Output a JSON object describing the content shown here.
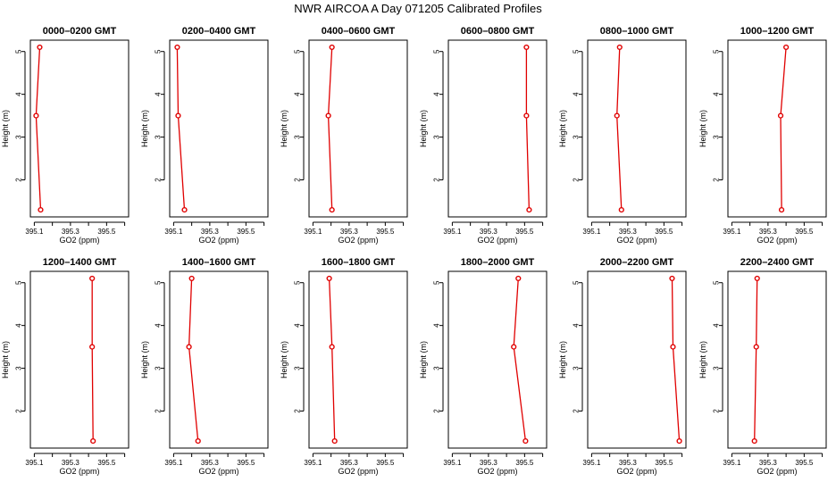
{
  "title": "NWR AIRCOA A  Day 071205  Calibrated Profiles",
  "colors": {
    "series": "#e00000",
    "frame": "#000000",
    "background": "#ffffff"
  },
  "chart_data": [
    {
      "type": "line",
      "title": "0000–0200 GMT",
      "xlabel": "GO2 (ppm)",
      "ylabel": "Height (m)",
      "xlim": [
        395.1,
        395.6
      ],
      "ylim": [
        1.3,
        5.1
      ],
      "x_ticks": [
        "395.1",
        "395.3",
        "395.5"
      ],
      "y_ticks": [
        "2",
        "3",
        "4",
        "5"
      ],
      "grid": false,
      "x": [
        395.13,
        395.11,
        395.135
      ],
      "y": [
        5.1,
        3.5,
        1.3
      ]
    },
    {
      "type": "line",
      "title": "0200–0400 GMT",
      "xlabel": "GO2 (ppm)",
      "ylabel": "Height (m)",
      "xlim": [
        395.1,
        395.6
      ],
      "ylim": [
        1.3,
        5.1
      ],
      "x_ticks": [
        "395.1",
        "395.3",
        "395.5"
      ],
      "y_ticks": [
        "2",
        "3",
        "4",
        "5"
      ],
      "grid": false,
      "x": [
        395.12,
        395.125,
        395.16
      ],
      "y": [
        5.1,
        3.5,
        1.3
      ]
    },
    {
      "type": "line",
      "title": "0400–0600 GMT",
      "xlabel": "GO2 (ppm)",
      "ylabel": "Height (m)",
      "xlim": [
        395.1,
        395.6
      ],
      "ylim": [
        1.3,
        5.1
      ],
      "x_ticks": [
        "395.1",
        "395.3",
        "395.5"
      ],
      "y_ticks": [
        "2",
        "3",
        "4",
        "5"
      ],
      "grid": false,
      "x": [
        395.205,
        395.185,
        395.205
      ],
      "y": [
        5.1,
        3.5,
        1.3
      ]
    },
    {
      "type": "line",
      "title": "0600–0800 GMT",
      "xlabel": "GO2 (ppm)",
      "ylabel": "Height (m)",
      "xlim": [
        395.1,
        395.6
      ],
      "ylim": [
        1.3,
        5.1
      ],
      "x_ticks": [
        "395.1",
        "395.3",
        "395.5"
      ],
      "y_ticks": [
        "2",
        "3",
        "4",
        "5"
      ],
      "grid": false,
      "x": [
        395.51,
        395.51,
        395.525
      ],
      "y": [
        5.1,
        3.5,
        1.3
      ]
    },
    {
      "type": "line",
      "title": "0800–1000 GMT",
      "xlabel": "GO2 (ppm)",
      "ylabel": "Height (m)",
      "xlim": [
        395.1,
        395.6
      ],
      "ylim": [
        1.3,
        5.1
      ],
      "x_ticks": [
        "395.1",
        "395.3",
        "395.5"
      ],
      "y_ticks": [
        "2",
        "3",
        "4",
        "5"
      ],
      "grid": false,
      "x": [
        395.255,
        395.24,
        395.265
      ],
      "y": [
        5.1,
        3.5,
        1.3
      ]
    },
    {
      "type": "line",
      "title": "1000–1200 GMT",
      "xlabel": "GO2 (ppm)",
      "ylabel": "Height (m)",
      "xlim": [
        395.1,
        395.6
      ],
      "ylim": [
        1.3,
        5.1
      ],
      "x_ticks": [
        "395.1",
        "395.3",
        "395.5"
      ],
      "y_ticks": [
        "2",
        "3",
        "4",
        "5"
      ],
      "grid": false,
      "x": [
        395.4,
        395.37,
        395.375
      ],
      "y": [
        5.1,
        3.5,
        1.3
      ]
    },
    {
      "type": "line",
      "title": "1200–1400 GMT",
      "xlabel": "GO2 (ppm)",
      "ylabel": "Height (m)",
      "xlim": [
        395.1,
        395.6
      ],
      "ylim": [
        1.3,
        5.1
      ],
      "x_ticks": [
        "395.1",
        "395.3",
        "395.5"
      ],
      "y_ticks": [
        "2",
        "3",
        "4",
        "5"
      ],
      "grid": false,
      "x": [
        395.42,
        395.42,
        395.425
      ],
      "y": [
        5.1,
        3.5,
        1.3
      ]
    },
    {
      "type": "line",
      "title": "1400–1600 GMT",
      "xlabel": "GO2 (ppm)",
      "ylabel": "Height (m)",
      "xlim": [
        395.1,
        395.6
      ],
      "ylim": [
        1.3,
        5.1
      ],
      "x_ticks": [
        "395.1",
        "395.3",
        "395.5"
      ],
      "y_ticks": [
        "2",
        "3",
        "4",
        "5"
      ],
      "grid": false,
      "x": [
        395.2,
        395.185,
        395.235
      ],
      "y": [
        5.1,
        3.5,
        1.3
      ]
    },
    {
      "type": "line",
      "title": "1600–1800 GMT",
      "xlabel": "GO2 (ppm)",
      "ylabel": "Height (m)",
      "xlim": [
        395.1,
        395.6
      ],
      "ylim": [
        1.3,
        5.1
      ],
      "x_ticks": [
        "395.1",
        "395.3",
        "395.5"
      ],
      "y_ticks": [
        "2",
        "3",
        "4",
        "5"
      ],
      "grid": false,
      "x": [
        395.19,
        395.205,
        395.22
      ],
      "y": [
        5.1,
        3.5,
        1.3
      ]
    },
    {
      "type": "line",
      "title": "1800–2000 GMT",
      "xlabel": "GO2 (ppm)",
      "ylabel": "Height (m)",
      "xlim": [
        395.1,
        395.6
      ],
      "ylim": [
        1.3,
        5.1
      ],
      "x_ticks": [
        "395.1",
        "395.3",
        "395.5"
      ],
      "y_ticks": [
        "2",
        "3",
        "4",
        "5"
      ],
      "grid": false,
      "x": [
        395.465,
        395.44,
        395.505
      ],
      "y": [
        5.1,
        3.5,
        1.3
      ]
    },
    {
      "type": "line",
      "title": "2000–2200 GMT",
      "xlabel": "GO2 (ppm)",
      "ylabel": "Height (m)",
      "xlim": [
        395.1,
        395.6
      ],
      "ylim": [
        1.3,
        5.1
      ],
      "x_ticks": [
        "395.1",
        "395.3",
        "395.5"
      ],
      "y_ticks": [
        "2",
        "3",
        "4",
        "5"
      ],
      "grid": false,
      "x": [
        395.545,
        395.55,
        395.585
      ],
      "y": [
        5.1,
        3.5,
        1.3
      ]
    },
    {
      "type": "line",
      "title": "2200–2400 GMT",
      "xlabel": "GO2 (ppm)",
      "ylabel": "Height (m)",
      "xlim": [
        395.1,
        395.6
      ],
      "ylim": [
        1.3,
        5.1
      ],
      "x_ticks": [
        "395.1",
        "395.3",
        "395.5"
      ],
      "y_ticks": [
        "2",
        "3",
        "4",
        "5"
      ],
      "grid": false,
      "x": [
        395.24,
        395.235,
        395.225
      ],
      "y": [
        5.1,
        3.5,
        1.3
      ]
    }
  ]
}
